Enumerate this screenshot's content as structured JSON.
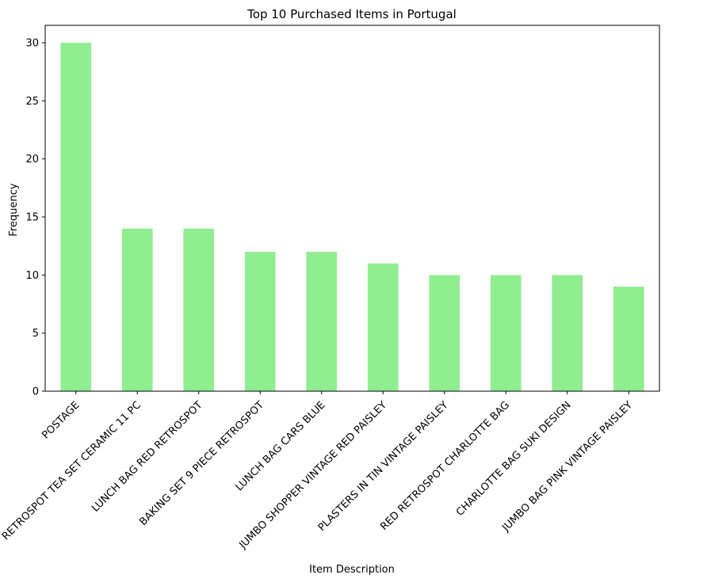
{
  "chart_data": {
    "type": "bar",
    "title": "Top 10 Purchased Items in Portugal",
    "xlabel": "Item Description",
    "ylabel": "Frequency",
    "categories": [
      "POSTAGE",
      "RETROSPOT TEA SET CERAMIC 11 PC",
      "LUNCH BAG RED RETROSPOT",
      "BAKING SET 9 PIECE RETROSPOT",
      "LUNCH BAG CARS BLUE",
      "JUMBO SHOPPER VINTAGE RED PAISLEY",
      "PLASTERS IN TIN VINTAGE PAISLEY",
      "RED RETROSPOT CHARLOTTE BAG",
      "CHARLOTTE BAG SUKI DESIGN",
      "JUMBO BAG PINK VINTAGE PAISLEY"
    ],
    "values": [
      30,
      14,
      14,
      12,
      12,
      11,
      10,
      10,
      10,
      9
    ],
    "ylim": [
      0,
      31.5
    ],
    "yticks": [
      0,
      5,
      10,
      15,
      20,
      25,
      30
    ],
    "bar_color": "#90ee90",
    "grid": false,
    "legend": false
  }
}
